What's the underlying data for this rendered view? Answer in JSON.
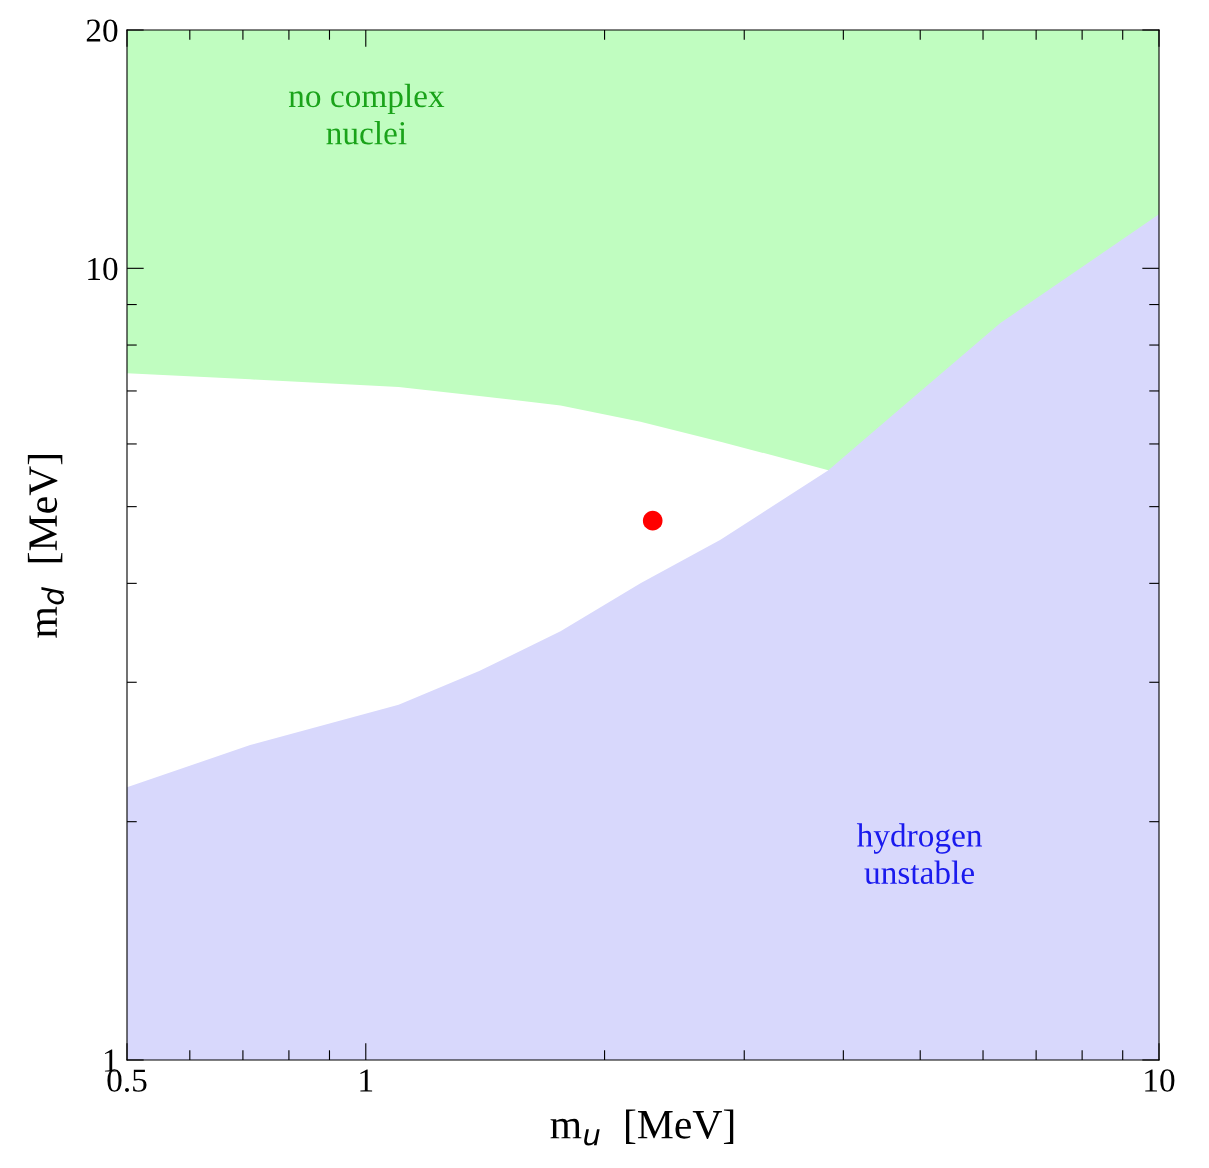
{
  "chart_data": {
    "type": "area",
    "xlabel": "m$_{u}$  [MeV]",
    "ylabel": "m$_{d}$  [MeV]",
    "log": "xy",
    "grid": false,
    "xlim": [
      0.5,
      10
    ],
    "ylim": [
      1,
      20
    ],
    "xticks": [
      0.5,
      {
        "value": 0.6,
        "label": null
      },
      {
        "value": 0.7,
        "label": null
      },
      {
        "value": 0.8,
        "label": null
      },
      {
        "value": 0.9,
        "label": null
      },
      1,
      {
        "value": 2,
        "label": null
      },
      {
        "value": 3,
        "label": null
      },
      {
        "value": 4,
        "label": null
      },
      {
        "value": 5,
        "label": null
      },
      {
        "value": 6,
        "label": null
      },
      {
        "value": 7,
        "label": null
      },
      {
        "value": 8,
        "label": null
      },
      {
        "value": 9,
        "label": null
      },
      10
    ],
    "yticks": [
      1,
      {
        "value": 2,
        "label": null
      },
      {
        "value": 3,
        "label": null
      },
      {
        "value": 4,
        "label": null
      },
      {
        "value": 5,
        "label": null
      },
      {
        "value": 6,
        "label": null
      },
      {
        "value": 7,
        "label": null
      },
      {
        "value": 8,
        "label": null
      },
      {
        "value": 9,
        "label": null
      },
      10,
      20
    ],
    "series": [
      {
        "color": "#c0fdc0",
        "x": [
          0.5,
          10
        ],
        "values": [
          20,
          20
        ]
      },
      {
        "color": "#ffffff",
        "x": [
          0.5,
          0.715,
          1.1,
          1.39,
          1.76,
          2.22,
          2.8,
          3.83
        ],
        "values": [
          7.37,
          7.24,
          7.08,
          6.9,
          6.71,
          6.4,
          6.04,
          5.56
        ]
      },
      {
        "color": "#d8d8fc",
        "x": [
          0.5,
          0.715,
          1.1,
          1.39,
          1.76,
          2.22,
          2.8,
          3.83,
          4.72,
          6.31,
          10
        ],
        "values": [
          2.21,
          2.5,
          2.81,
          3.1,
          3.48,
          4.0,
          4.54,
          5.56,
          6.65,
          8.53,
          11.7
        ]
      },
      {
        "type": "scatter",
        "color": "#ff0000",
        "marker": "circle",
        "x": [
          2.3
        ],
        "values": [
          4.8
        ]
      }
    ],
    "annotations": [
      "no complex\nnuclei",
      "hydrogen\nunstable"
    ]
  }
}
